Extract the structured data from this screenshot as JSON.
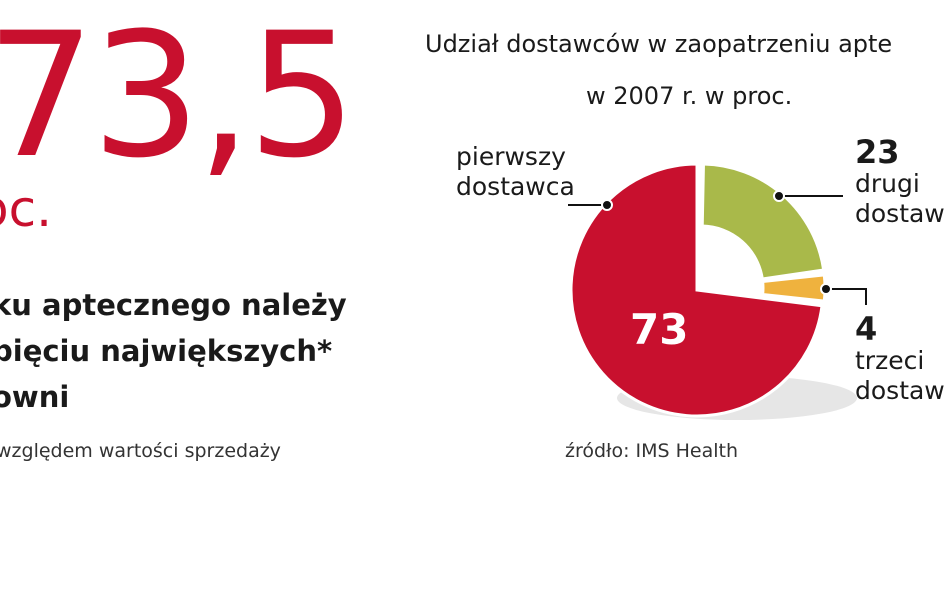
{
  "headline": {
    "value": "73,5",
    "unit": "oc.",
    "lines": [
      "ku aptecznego należy",
      "pięciu największych*",
      "owni"
    ],
    "footnote": "względem wartości sprzedaży"
  },
  "chart_data": {
    "type": "pie",
    "title_lines": [
      "Udział dostawców w zaopatrzeniu apte",
      "w 2007 r. w proc."
    ],
    "categories": [
      "pierwszy dostawca",
      "drugi dostaw",
      "trzeci dostaw"
    ],
    "values": [
      73,
      23,
      4
    ],
    "value_labels": [
      "73",
      "23",
      "4"
    ],
    "label_lines": [
      [
        "pierwszy",
        "dostawca"
      ],
      [
        "drugi",
        "dostaw"
      ],
      [
        "trzeci",
        "dostaw"
      ]
    ],
    "colors": [
      "#c8102e",
      "#a9b94a",
      "#efb23e"
    ],
    "source": "źródło: IMS Health"
  }
}
